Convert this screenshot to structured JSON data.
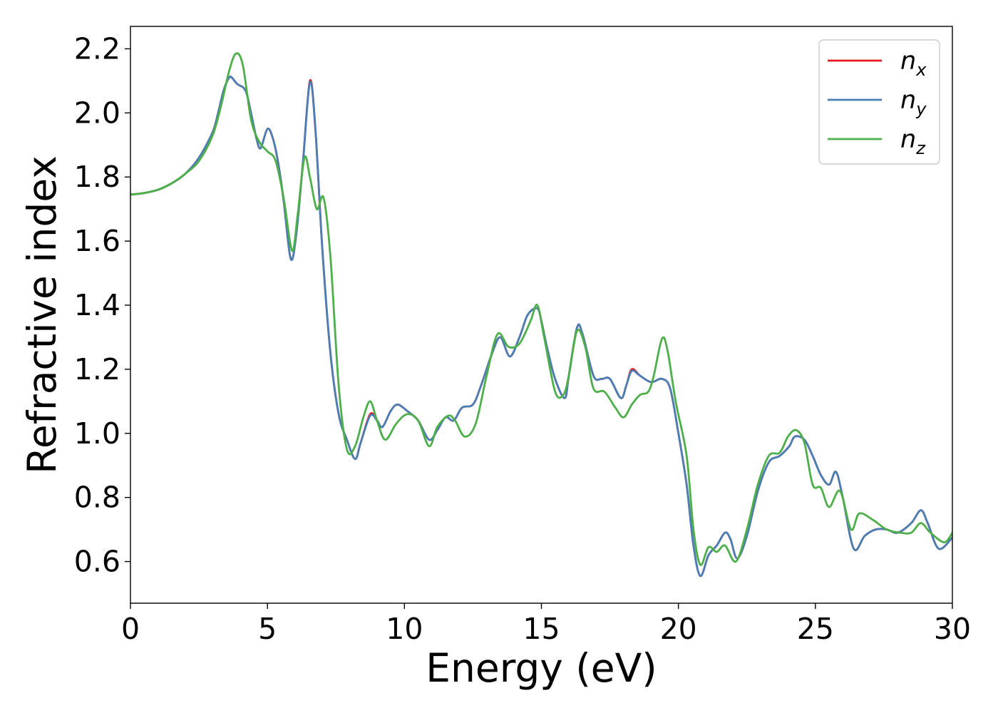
{
  "chart_data": {
    "type": "line",
    "title": "",
    "xlabel": "Energy (eV)",
    "ylabel": "Refractive index",
    "xlim": [
      0,
      30
    ],
    "ylim": [
      0.47,
      2.27
    ],
    "xticks": [
      0,
      5,
      10,
      15,
      20,
      25,
      30
    ],
    "yticks": [
      0.6,
      0.8,
      1.0,
      1.2,
      1.4,
      1.6,
      1.8,
      2.0,
      2.2
    ],
    "grid": false,
    "legend_position": "top-right",
    "series": [
      {
        "name": "n_x",
        "label_base": "n",
        "label_sub": "x",
        "color": "#e41a1c",
        "points": [
          [
            0,
            1.745
          ],
          [
            0.5,
            1.75
          ],
          [
            1,
            1.76
          ],
          [
            1.5,
            1.78
          ],
          [
            2,
            1.81
          ],
          [
            2.5,
            1.86
          ],
          [
            3,
            1.94
          ],
          [
            3.2,
            2.0
          ],
          [
            3.4,
            2.07
          ],
          [
            3.6,
            2.11
          ],
          [
            3.7,
            2.11
          ],
          [
            3.9,
            2.09
          ],
          [
            4.2,
            2.07
          ],
          [
            4.4,
            2.0
          ],
          [
            4.6,
            1.92
          ],
          [
            4.75,
            1.89
          ],
          [
            5,
            1.95
          ],
          [
            5.2,
            1.92
          ],
          [
            5.4,
            1.84
          ],
          [
            5.6,
            1.72
          ],
          [
            5.85,
            1.545
          ],
          [
            6.05,
            1.62
          ],
          [
            6.3,
            1.85
          ],
          [
            6.55,
            2.1
          ],
          [
            6.75,
            1.95
          ],
          [
            7.0,
            1.58
          ],
          [
            7.3,
            1.25
          ],
          [
            7.6,
            1.06
          ],
          [
            7.9,
            0.98
          ],
          [
            8.2,
            0.92
          ],
          [
            8.4,
            0.97
          ],
          [
            8.75,
            1.06
          ],
          [
            9.0,
            1.04
          ],
          [
            9.2,
            1.02
          ],
          [
            9.5,
            1.07
          ],
          [
            9.75,
            1.09
          ],
          [
            10.1,
            1.07
          ],
          [
            10.5,
            1.04
          ],
          [
            10.9,
            0.98
          ],
          [
            11.2,
            1.01
          ],
          [
            11.5,
            1.05
          ],
          [
            11.8,
            1.04
          ],
          [
            12.1,
            1.08
          ],
          [
            12.5,
            1.09
          ],
          [
            12.8,
            1.15
          ],
          [
            13.2,
            1.25
          ],
          [
            13.5,
            1.3
          ],
          [
            13.85,
            1.24
          ],
          [
            14.2,
            1.3
          ],
          [
            14.5,
            1.37
          ],
          [
            14.85,
            1.39
          ],
          [
            15.0,
            1.35
          ],
          [
            15.2,
            1.27
          ],
          [
            15.5,
            1.17
          ],
          [
            15.85,
            1.11
          ],
          [
            16.0,
            1.18
          ],
          [
            16.3,
            1.33
          ],
          [
            16.5,
            1.31
          ],
          [
            16.9,
            1.18
          ],
          [
            17.2,
            1.17
          ],
          [
            17.5,
            1.17
          ],
          [
            17.9,
            1.11
          ],
          [
            18.1,
            1.15
          ],
          [
            18.3,
            1.2
          ],
          [
            18.6,
            1.18
          ],
          [
            19.0,
            1.16
          ],
          [
            19.4,
            1.17
          ],
          [
            19.7,
            1.14
          ],
          [
            20.0,
            1.0
          ],
          [
            20.3,
            0.84
          ],
          [
            20.55,
            0.65
          ],
          [
            20.8,
            0.555
          ],
          [
            21.1,
            0.62
          ],
          [
            21.4,
            0.65
          ],
          [
            21.7,
            0.69
          ],
          [
            21.9,
            0.67
          ],
          [
            22.15,
            0.61
          ],
          [
            22.5,
            0.68
          ],
          [
            22.9,
            0.82
          ],
          [
            23.3,
            0.91
          ],
          [
            23.7,
            0.93
          ],
          [
            24.05,
            0.96
          ],
          [
            24.25,
            0.99
          ],
          [
            24.6,
            0.98
          ],
          [
            24.9,
            0.93
          ],
          [
            25.2,
            0.87
          ],
          [
            25.5,
            0.84
          ],
          [
            25.75,
            0.88
          ],
          [
            26.0,
            0.8
          ],
          [
            26.4,
            0.64
          ],
          [
            26.8,
            0.68
          ],
          [
            27.2,
            0.7
          ],
          [
            27.6,
            0.7
          ],
          [
            28.0,
            0.69
          ],
          [
            28.5,
            0.72
          ],
          [
            28.85,
            0.76
          ],
          [
            29.1,
            0.72
          ],
          [
            29.5,
            0.64
          ],
          [
            30,
            0.675
          ]
        ]
      },
      {
        "name": "n_y",
        "label_base": "n",
        "label_sub": "y",
        "color": "#4a7fb5",
        "points": [
          [
            0,
            1.745
          ],
          [
            0.5,
            1.75
          ],
          [
            1,
            1.76
          ],
          [
            1.5,
            1.78
          ],
          [
            2,
            1.81
          ],
          [
            2.5,
            1.86
          ],
          [
            3,
            1.94
          ],
          [
            3.2,
            2.0
          ],
          [
            3.4,
            2.07
          ],
          [
            3.6,
            2.11
          ],
          [
            3.7,
            2.11
          ],
          [
            3.9,
            2.09
          ],
          [
            4.2,
            2.07
          ],
          [
            4.4,
            2.0
          ],
          [
            4.6,
            1.92
          ],
          [
            4.75,
            1.89
          ],
          [
            5,
            1.95
          ],
          [
            5.2,
            1.92
          ],
          [
            5.4,
            1.84
          ],
          [
            5.6,
            1.72
          ],
          [
            5.85,
            1.545
          ],
          [
            6.05,
            1.62
          ],
          [
            6.3,
            1.85
          ],
          [
            6.55,
            2.095
          ],
          [
            6.75,
            1.95
          ],
          [
            7.0,
            1.58
          ],
          [
            7.3,
            1.25
          ],
          [
            7.6,
            1.06
          ],
          [
            7.9,
            0.98
          ],
          [
            8.2,
            0.92
          ],
          [
            8.4,
            0.97
          ],
          [
            8.75,
            1.055
          ],
          [
            9.0,
            1.04
          ],
          [
            9.2,
            1.02
          ],
          [
            9.5,
            1.07
          ],
          [
            9.75,
            1.09
          ],
          [
            10.1,
            1.07
          ],
          [
            10.5,
            1.04
          ],
          [
            10.9,
            0.98
          ],
          [
            11.2,
            1.01
          ],
          [
            11.5,
            1.05
          ],
          [
            11.8,
            1.04
          ],
          [
            12.1,
            1.08
          ],
          [
            12.5,
            1.09
          ],
          [
            12.8,
            1.15
          ],
          [
            13.2,
            1.25
          ],
          [
            13.5,
            1.3
          ],
          [
            13.85,
            1.24
          ],
          [
            14.2,
            1.3
          ],
          [
            14.5,
            1.37
          ],
          [
            14.85,
            1.39
          ],
          [
            15.0,
            1.35
          ],
          [
            15.2,
            1.27
          ],
          [
            15.5,
            1.17
          ],
          [
            15.85,
            1.11
          ],
          [
            16.0,
            1.18
          ],
          [
            16.3,
            1.33
          ],
          [
            16.5,
            1.31
          ],
          [
            16.9,
            1.18
          ],
          [
            17.2,
            1.17
          ],
          [
            17.5,
            1.17
          ],
          [
            17.9,
            1.11
          ],
          [
            18.1,
            1.15
          ],
          [
            18.3,
            1.195
          ],
          [
            18.6,
            1.18
          ],
          [
            19.0,
            1.16
          ],
          [
            19.4,
            1.17
          ],
          [
            19.7,
            1.14
          ],
          [
            20.0,
            1.0
          ],
          [
            20.3,
            0.84
          ],
          [
            20.55,
            0.65
          ],
          [
            20.8,
            0.555
          ],
          [
            21.1,
            0.62
          ],
          [
            21.4,
            0.65
          ],
          [
            21.7,
            0.69
          ],
          [
            21.9,
            0.67
          ],
          [
            22.15,
            0.61
          ],
          [
            22.5,
            0.68
          ],
          [
            22.9,
            0.82
          ],
          [
            23.3,
            0.91
          ],
          [
            23.7,
            0.93
          ],
          [
            24.05,
            0.96
          ],
          [
            24.25,
            0.99
          ],
          [
            24.6,
            0.98
          ],
          [
            24.9,
            0.93
          ],
          [
            25.2,
            0.87
          ],
          [
            25.5,
            0.84
          ],
          [
            25.75,
            0.88
          ],
          [
            26.0,
            0.8
          ],
          [
            26.4,
            0.64
          ],
          [
            26.8,
            0.68
          ],
          [
            27.2,
            0.7
          ],
          [
            27.6,
            0.7
          ],
          [
            28.0,
            0.69
          ],
          [
            28.5,
            0.72
          ],
          [
            28.85,
            0.76
          ],
          [
            29.1,
            0.72
          ],
          [
            29.5,
            0.64
          ],
          [
            30,
            0.675
          ]
        ]
      },
      {
        "name": "n_z",
        "label_base": "n",
        "label_sub": "z",
        "color": "#4daf4a",
        "points": [
          [
            0,
            1.745
          ],
          [
            0.5,
            1.75
          ],
          [
            1,
            1.76
          ],
          [
            1.5,
            1.78
          ],
          [
            2,
            1.81
          ],
          [
            2.5,
            1.85
          ],
          [
            3,
            1.93
          ],
          [
            3.3,
            2.02
          ],
          [
            3.6,
            2.13
          ],
          [
            3.85,
            2.185
          ],
          [
            4.1,
            2.15
          ],
          [
            4.4,
            1.98
          ],
          [
            4.7,
            1.91
          ],
          [
            5.0,
            1.88
          ],
          [
            5.3,
            1.85
          ],
          [
            5.6,
            1.73
          ],
          [
            5.9,
            1.57
          ],
          [
            6.1,
            1.68
          ],
          [
            6.35,
            1.86
          ],
          [
            6.55,
            1.8
          ],
          [
            6.8,
            1.7
          ],
          [
            7.05,
            1.735
          ],
          [
            7.3,
            1.55
          ],
          [
            7.6,
            1.15
          ],
          [
            7.9,
            0.95
          ],
          [
            8.2,
            0.96
          ],
          [
            8.5,
            1.05
          ],
          [
            8.75,
            1.1
          ],
          [
            9.0,
            1.04
          ],
          [
            9.3,
            0.98
          ],
          [
            9.7,
            1.03
          ],
          [
            10.1,
            1.06
          ],
          [
            10.5,
            1.04
          ],
          [
            10.9,
            0.96
          ],
          [
            11.2,
            1.02
          ],
          [
            11.6,
            1.055
          ],
          [
            11.85,
            1.04
          ],
          [
            12.2,
            0.99
          ],
          [
            12.6,
            1.03
          ],
          [
            13.0,
            1.18
          ],
          [
            13.4,
            1.31
          ],
          [
            13.8,
            1.27
          ],
          [
            14.2,
            1.28
          ],
          [
            14.6,
            1.35
          ],
          [
            14.85,
            1.4
          ],
          [
            15.1,
            1.3
          ],
          [
            15.5,
            1.13
          ],
          [
            15.8,
            1.12
          ],
          [
            16.0,
            1.18
          ],
          [
            16.3,
            1.32
          ],
          [
            16.6,
            1.27
          ],
          [
            16.9,
            1.14
          ],
          [
            17.3,
            1.13
          ],
          [
            17.7,
            1.08
          ],
          [
            18.0,
            1.05
          ],
          [
            18.3,
            1.09
          ],
          [
            18.6,
            1.12
          ],
          [
            18.9,
            1.13
          ],
          [
            19.1,
            1.18
          ],
          [
            19.4,
            1.295
          ],
          [
            19.6,
            1.26
          ],
          [
            19.9,
            1.1
          ],
          [
            20.3,
            0.93
          ],
          [
            20.55,
            0.7
          ],
          [
            20.8,
            0.59
          ],
          [
            21.1,
            0.645
          ],
          [
            21.4,
            0.63
          ],
          [
            21.7,
            0.65
          ],
          [
            22.1,
            0.6
          ],
          [
            22.5,
            0.7
          ],
          [
            22.9,
            0.84
          ],
          [
            23.3,
            0.93
          ],
          [
            23.7,
            0.94
          ],
          [
            24.0,
            0.99
          ],
          [
            24.3,
            1.01
          ],
          [
            24.6,
            0.97
          ],
          [
            24.9,
            0.84
          ],
          [
            25.2,
            0.83
          ],
          [
            25.5,
            0.77
          ],
          [
            25.9,
            0.82
          ],
          [
            26.3,
            0.7
          ],
          [
            26.6,
            0.75
          ],
          [
            27.1,
            0.73
          ],
          [
            27.6,
            0.7
          ],
          [
            28.1,
            0.69
          ],
          [
            28.5,
            0.69
          ],
          [
            28.85,
            0.72
          ],
          [
            29.2,
            0.69
          ],
          [
            29.7,
            0.66
          ],
          [
            30,
            0.69
          ]
        ]
      }
    ]
  }
}
